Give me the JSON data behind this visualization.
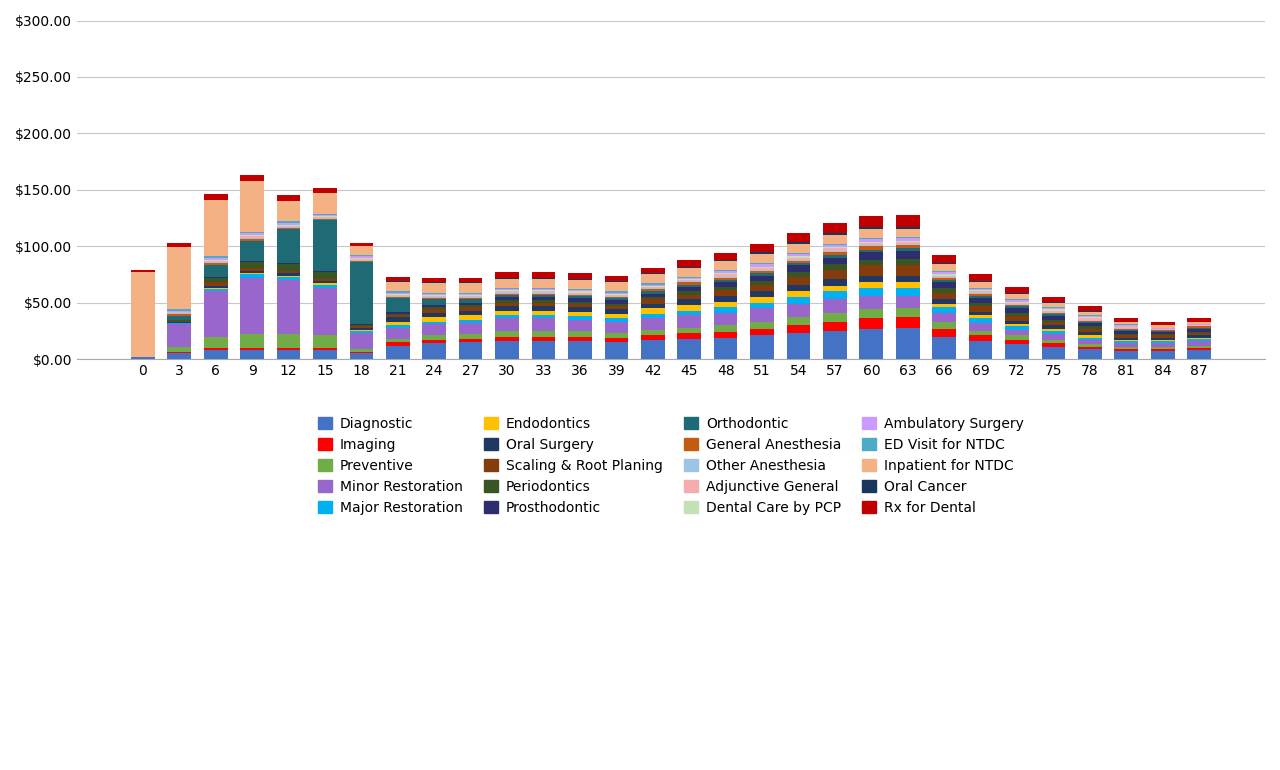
{
  "categories": [
    0,
    3,
    6,
    9,
    12,
    15,
    18,
    21,
    24,
    27,
    30,
    33,
    36,
    39,
    42,
    45,
    48,
    51,
    54,
    57,
    60,
    63,
    66,
    69,
    72,
    75,
    78,
    81,
    84,
    87
  ],
  "series": {
    "Diagnostic": [
      2,
      5,
      8,
      8,
      8,
      8,
      5,
      12,
      14,
      15,
      16,
      16,
      16,
      15,
      17,
      18,
      19,
      21,
      23,
      25,
      27,
      28,
      20,
      16,
      13,
      11,
      9,
      7,
      7,
      8
    ],
    "Imaging": [
      0,
      1,
      2,
      2,
      2,
      2,
      1,
      3,
      3,
      3,
      4,
      4,
      4,
      4,
      4,
      5,
      5,
      6,
      7,
      8,
      9,
      9,
      7,
      5,
      4,
      3,
      2,
      2,
      2,
      2
    ],
    "Preventive": [
      0,
      5,
      10,
      12,
      12,
      11,
      3,
      3,
      4,
      4,
      5,
      5,
      5,
      4,
      5,
      5,
      6,
      6,
      7,
      8,
      8,
      8,
      6,
      4,
      4,
      3,
      2,
      2,
      2,
      2
    ],
    "Minor Restoration": [
      0,
      20,
      40,
      50,
      48,
      42,
      14,
      10,
      10,
      10,
      11,
      11,
      10,
      10,
      10,
      11,
      11,
      12,
      12,
      12,
      12,
      11,
      8,
      7,
      5,
      5,
      4,
      3,
      3,
      4
    ],
    "Major Restoration": [
      0,
      1,
      2,
      3,
      3,
      3,
      2,
      2,
      2,
      3,
      3,
      3,
      3,
      3,
      4,
      4,
      5,
      5,
      6,
      7,
      7,
      7,
      5,
      4,
      3,
      3,
      2,
      2,
      2,
      2
    ],
    "Endodontics": [
      0,
      0,
      1,
      1,
      1,
      1,
      1,
      3,
      4,
      4,
      4,
      4,
      4,
      4,
      5,
      5,
      5,
      5,
      5,
      5,
      5,
      5,
      3,
      3,
      2,
      2,
      2,
      1,
      1,
      1
    ],
    "Oral Surgery": [
      0,
      1,
      2,
      2,
      2,
      2,
      2,
      4,
      4,
      4,
      4,
      4,
      4,
      4,
      4,
      5,
      5,
      5,
      6,
      6,
      6,
      6,
      4,
      3,
      3,
      3,
      3,
      2,
      2,
      2
    ],
    "Scaling & Root Planing": [
      0,
      1,
      3,
      3,
      2,
      2,
      1,
      2,
      3,
      3,
      3,
      3,
      3,
      3,
      4,
      4,
      5,
      6,
      7,
      8,
      9,
      9,
      6,
      5,
      4,
      3,
      3,
      2,
      2,
      2
    ],
    "Periodontics": [
      0,
      1,
      4,
      5,
      6,
      6,
      1,
      1,
      2,
      2,
      2,
      2,
      2,
      2,
      2,
      3,
      3,
      3,
      4,
      5,
      5,
      6,
      4,
      3,
      3,
      2,
      2,
      1,
      1,
      1
    ],
    "Prosthodontic": [
      0,
      0,
      1,
      1,
      1,
      1,
      1,
      2,
      2,
      2,
      3,
      3,
      3,
      3,
      3,
      4,
      4,
      5,
      6,
      6,
      7,
      7,
      5,
      4,
      4,
      3,
      3,
      3,
      2,
      3
    ],
    "Orthodontic": [
      0,
      3,
      10,
      18,
      30,
      45,
      55,
      12,
      5,
      3,
      2,
      2,
      2,
      2,
      2,
      2,
      2,
      2,
      2,
      2,
      2,
      2,
      2,
      2,
      2,
      2,
      1,
      1,
      1,
      1
    ],
    "General Anesthesia": [
      0,
      2,
      2,
      1,
      1,
      1,
      1,
      1,
      1,
      1,
      1,
      1,
      1,
      1,
      2,
      2,
      2,
      2,
      2,
      3,
      3,
      3,
      2,
      2,
      1,
      1,
      1,
      1,
      1,
      1
    ],
    "Other Anesthesia": [
      0,
      1,
      1,
      1,
      1,
      1,
      1,
      1,
      1,
      1,
      1,
      1,
      1,
      1,
      1,
      1,
      1,
      1,
      1,
      1,
      1,
      1,
      1,
      1,
      1,
      1,
      1,
      1,
      0,
      0
    ],
    "Adjunctive General": [
      0,
      1,
      1,
      2,
      1,
      1,
      1,
      1,
      1,
      1,
      1,
      1,
      1,
      1,
      1,
      1,
      2,
      2,
      2,
      2,
      2,
      2,
      1,
      1,
      1,
      1,
      1,
      1,
      1,
      1
    ],
    "Dental Care by PCP": [
      0,
      0,
      1,
      1,
      1,
      1,
      1,
      1,
      1,
      1,
      1,
      1,
      1,
      1,
      1,
      1,
      1,
      1,
      1,
      1,
      1,
      1,
      1,
      1,
      1,
      1,
      1,
      0,
      0,
      0
    ],
    "Ambulatory Surgery": [
      0,
      1,
      2,
      2,
      2,
      1,
      1,
      1,
      1,
      1,
      1,
      1,
      1,
      1,
      1,
      1,
      2,
      2,
      2,
      2,
      2,
      2,
      2,
      1,
      1,
      1,
      1,
      1,
      1,
      1
    ],
    "ED Visit for NTDC": [
      0,
      1,
      1,
      1,
      1,
      1,
      1,
      1,
      1,
      1,
      1,
      1,
      1,
      1,
      1,
      1,
      1,
      1,
      1,
      1,
      1,
      1,
      1,
      1,
      1,
      1,
      1,
      1,
      0,
      0
    ],
    "Inpatient for NTDC": [
      75,
      55,
      50,
      45,
      18,
      18,
      8,
      8,
      8,
      8,
      8,
      8,
      8,
      8,
      8,
      8,
      8,
      8,
      8,
      8,
      8,
      7,
      6,
      5,
      5,
      4,
      3,
      2,
      2,
      2
    ],
    "Oral Cancer": [
      0,
      0,
      0,
      0,
      0,
      0,
      0,
      1,
      1,
      1,
      1,
      1,
      1,
      1,
      1,
      1,
      1,
      2,
      2,
      2,
      2,
      2,
      1,
      1,
      1,
      1,
      1,
      0,
      0,
      0
    ],
    "Rx for Dental": [
      2,
      4,
      5,
      5,
      5,
      5,
      3,
      4,
      4,
      4,
      5,
      5,
      5,
      5,
      5,
      6,
      6,
      7,
      8,
      9,
      10,
      11,
      7,
      6,
      5,
      4,
      4,
      3,
      3,
      3
    ]
  },
  "colors": {
    "Diagnostic": "#4472C4",
    "Imaging": "#FF0000",
    "Preventive": "#70AD47",
    "Minor Restoration": "#9966CC",
    "Major Restoration": "#00B0F0",
    "Endodontics": "#FFC000",
    "Oral Surgery": "#1F3864",
    "Scaling & Root Planing": "#843C0C",
    "Periodontics": "#375623",
    "Prosthodontic": "#2E2E6E",
    "Orthodontic": "#1F6B75",
    "General Anesthesia": "#C55A11",
    "Other Anesthesia": "#9DC3E6",
    "Adjunctive General": "#F4ACAC",
    "Dental Care by PCP": "#C5E0B4",
    "Ambulatory Surgery": "#CC99FF",
    "ED Visit for NTDC": "#00B0F0",
    "Inpatient for NTDC": "#F4B183",
    "Oral Cancer": "#1F3864",
    "Rx for Dental": "#C00000"
  },
  "ylim": [
    0,
    300
  ],
  "yticks": [
    0,
    50,
    100,
    150,
    200,
    250,
    300
  ],
  "background_color": "#FFFFFF",
  "grid_color": "#C8C8C8"
}
